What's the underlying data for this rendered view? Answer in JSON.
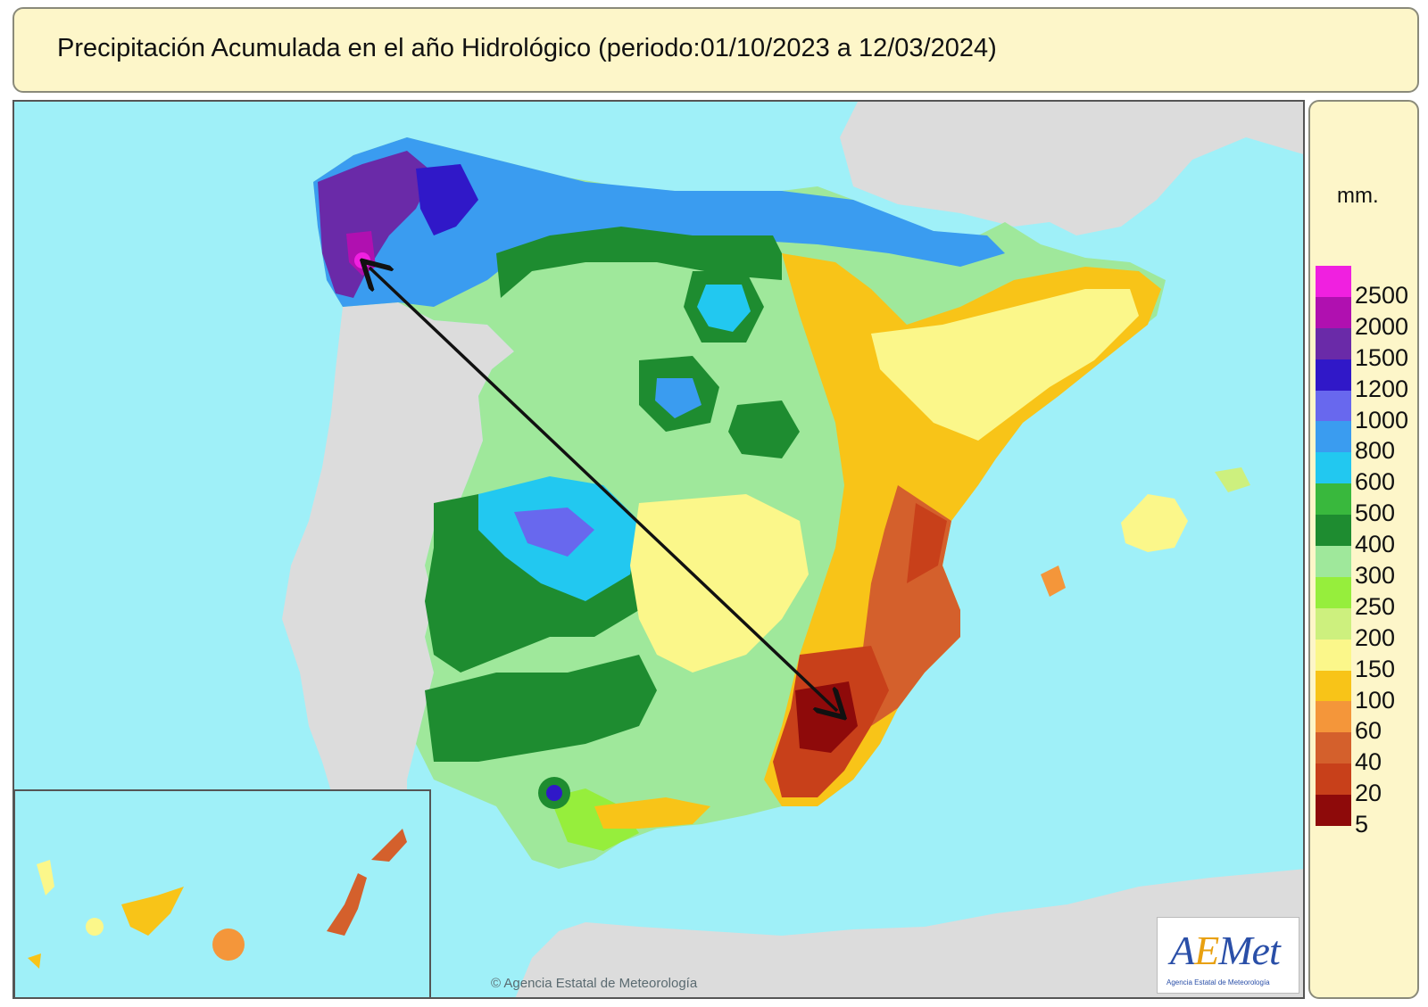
{
  "title": "Precipitación Acumulada en el año Hidrológico  (periodo:01/10/2023 a 12/03/2024)",
  "legend": {
    "unit": "mm.",
    "labels": [
      "2500",
      "2000",
      "1500",
      "1200",
      "1000",
      "800",
      "600",
      "500",
      "400",
      "300",
      "250",
      "200",
      "150",
      "100",
      "60",
      "40",
      "20",
      "5"
    ],
    "colors": [
      "#f020e0",
      "#b010b0",
      "#6a2aa8",
      "#3018c8",
      "#6868ee",
      "#3a9cf0",
      "#22c8f0",
      "#39b83d",
      "#1e8c30",
      "#9fe89b",
      "#96ee3c",
      "#cdf07e",
      "#fbf78a",
      "#f8c418",
      "#f4963a",
      "#d4602c",
      "#c8401a",
      "#8e0a0a"
    ]
  },
  "logo": {
    "word_a": "A",
    "word_e": "E",
    "word_rest": "Met",
    "subtitle": "Agencia Estatal de Meteorología"
  },
  "copyright": "© Agencia Estatal de Meteorología",
  "colors": {
    "sea": "#9ff0f8",
    "land_outside": "#dcdcdc",
    "title_box": "#fdf6c9",
    "arrow": "#111111"
  }
}
